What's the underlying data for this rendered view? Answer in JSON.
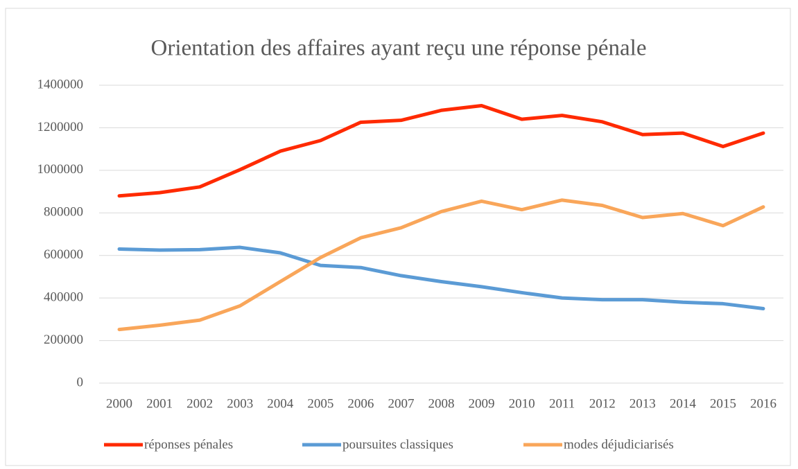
{
  "chart_data": {
    "type": "line",
    "title": "Orientation des affaires ayant reçu une réponse pénale",
    "categories": [
      "2000",
      "2001",
      "2002",
      "2003",
      "2004",
      "2005",
      "2006",
      "2007",
      "2008",
      "2009",
      "2010",
      "2011",
      "2012",
      "2013",
      "2014",
      "2015",
      "2016"
    ],
    "series": [
      {
        "name": "réponses pénales",
        "color": "#ff2a00",
        "values": [
          880000,
          895000,
          922000,
          1003000,
          1090000,
          1140000,
          1226000,
          1235000,
          1282000,
          1304000,
          1240000,
          1258000,
          1228000,
          1168000,
          1175000,
          1112000,
          1175000
        ]
      },
      {
        "name": "poursuites classiques",
        "color": "#5b9bd5",
        "values": [
          630000,
          625000,
          627000,
          638000,
          612000,
          553000,
          543000,
          505000,
          477000,
          453000,
          425000,
          400000,
          392000,
          392000,
          380000,
          373000,
          350000
        ]
      },
      {
        "name": "modes déjudiciarisés",
        "color": "#f9a65a",
        "values": [
          252000,
          272000,
          296000,
          363000,
          477000,
          590000,
          683000,
          730000,
          806000,
          855000,
          815000,
          860000,
          835000,
          778000,
          797000,
          740000,
          828000
        ]
      }
    ],
    "ylim": [
      0,
      1400000
    ],
    "yticks": [
      0,
      200000,
      400000,
      600000,
      800000,
      1000000,
      1200000,
      1400000
    ],
    "grid": true,
    "legend": "bottom"
  }
}
